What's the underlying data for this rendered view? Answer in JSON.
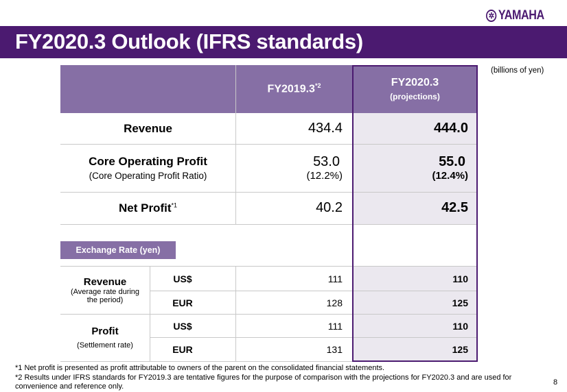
{
  "logo": "YAMAHA",
  "title": "FY2020.3 Outlook (IFRS standards)",
  "units": "(billions of yen)",
  "columns": {
    "prev": "FY2019.3",
    "prev_note": "*2",
    "proj": "FY2020.3",
    "proj_sub": "(projections)"
  },
  "rows": [
    {
      "label": "Revenue",
      "prev": "434.4",
      "proj": "444.0"
    },
    {
      "label": "Core Operating Profit",
      "sub": "(Core Operating Profit Ratio)",
      "prev": "53.0",
      "prev2": "(12.2%)",
      "proj": "55.0",
      "proj2": "(12.4%)"
    },
    {
      "label": "Net Profit",
      "note": "*1",
      "prev": "40.2",
      "proj": "42.5"
    }
  ],
  "exchange": {
    "label": "Exchange Rate (yen)",
    "groups": [
      {
        "label": "Revenue",
        "sub": "(Average rate during the period)",
        "rows": [
          {
            "cur": "US$",
            "prev": "111",
            "proj": "110"
          },
          {
            "cur": "EUR",
            "prev": "128",
            "proj": "125"
          }
        ]
      },
      {
        "label": "Profit",
        "sub": "(Settlement rate)",
        "rows": [
          {
            "cur": "US$",
            "prev": "111",
            "proj": "110"
          },
          {
            "cur": "EUR",
            "prev": "131",
            "proj": "125"
          }
        ]
      }
    ]
  },
  "footnotes": [
    "*1  Net profit is presented as profit attributable to owners of the parent on the consolidated financial statements.",
    "*2  Results under IFRS standards for FY2019.3 are tentative figures for the purpose of comparison with the projections for FY2020.3 and are used for convenience and reference only."
  ],
  "page": "8"
}
